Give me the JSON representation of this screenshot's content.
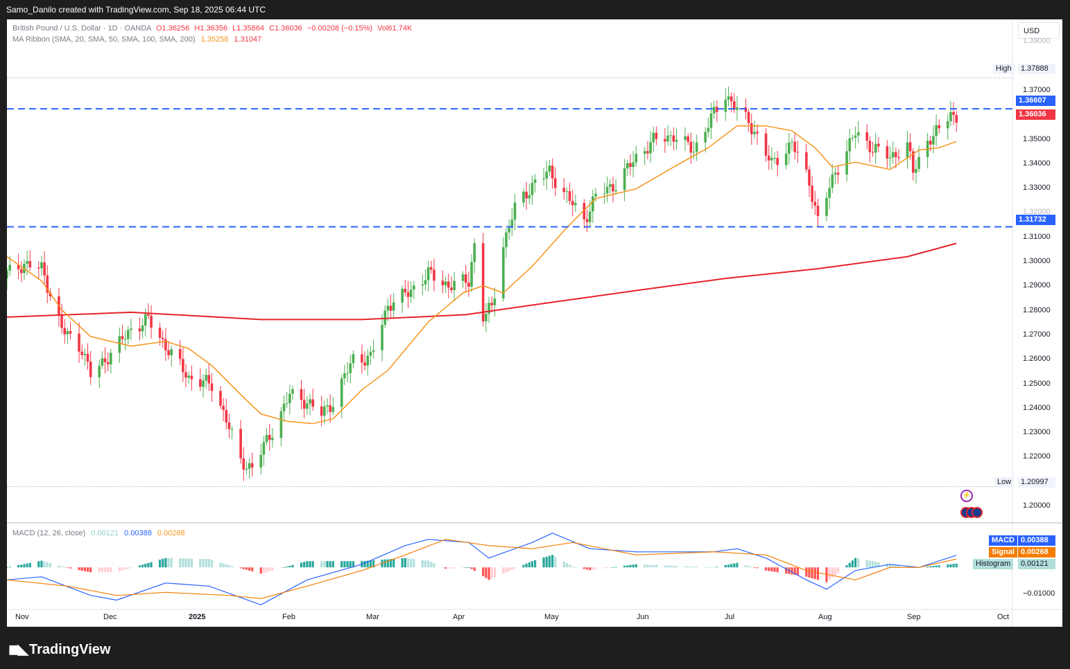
{
  "header": {
    "credit": "Samo_Danilo created with TradingView.com, Sep 18, 2025 06:44 UTC"
  },
  "legend": {
    "symbol": "British Pound / U.S. Dollar · 1D · OANDA",
    "o": "O1.36256",
    "h": "H1.36356",
    "l": "L1.35864",
    "c": "C1.36036",
    "chg": "−0.00208 (−0.15%)",
    "vol": "Vol61.74K",
    "ma_title": "MA Ribbon (SMA, 20, SMA, 50, SMA, 100, SMA, 200)",
    "ma_v1": "1.35258",
    "ma_v2": "1.31047",
    "macd_title": "MACD (12, 26, close)",
    "macd_h": "0.00121",
    "macd_m": "0.00388",
    "macd_s": "0.00268"
  },
  "currency_button": "USD",
  "price_ticks": [
    "1.39000",
    "1.37000",
    "1.35000",
    "1.34000",
    "1.33000",
    "1.32000",
    "1.31000",
    "1.30000",
    "1.29000",
    "1.28000",
    "1.27000",
    "1.26000",
    "1.25000",
    "1.24000",
    "1.23000",
    "1.22000",
    "1.20000"
  ],
  "macd_ticks": [
    "−0.01000"
  ],
  "tags": {
    "high_label": "High",
    "high_value": "1.37888",
    "res_value": "1.36607",
    "last_value": "1.36036",
    "sup_value": "1.31732",
    "low_label": "Low",
    "low_value": "1.20997",
    "macd_label": "MACD",
    "macd_value": "0.00388",
    "signal_label": "Signal",
    "signal_value": "0.00268",
    "hist_label": "Histogram",
    "hist_value": "0.00121"
  },
  "x_labels": [
    "Nov",
    "Dec",
    "2025",
    "Feb",
    "Mar",
    "Apr",
    "May",
    "Jun",
    "Jul",
    "Aug",
    "Sep",
    "Oct"
  ],
  "colors": {
    "up": "#26a69a",
    "green": "#4caf50",
    "down": "#f23645",
    "sma20": "#f7931a",
    "sma200": "#e5232a",
    "level": "#2962ff",
    "macd": "#2962ff",
    "signal": "#f57c00"
  },
  "brand": "TradingView",
  "chart_data": {
    "type": "candlestick",
    "title": "British Pound / U.S. Dollar · 1D · OANDA",
    "ylim": [
      1.195,
      1.395
    ],
    "x_start": "2024-10-24",
    "x_end": "2025-10-05",
    "levels": {
      "resistance": 1.36607,
      "support": 1.31732,
      "high": 1.37888,
      "low": 1.20997
    },
    "close_path": [
      [
        "2024-10-24",
        1.298
      ],
      [
        "2024-10-30",
        1.302
      ],
      [
        "2024-11-05",
        1.3
      ],
      [
        "2024-11-08",
        1.29
      ],
      [
        "2024-11-12",
        1.275
      ],
      [
        "2024-11-19",
        1.267
      ],
      [
        "2024-11-22",
        1.256
      ],
      [
        "2024-11-29",
        1.265
      ],
      [
        "2024-12-06",
        1.275
      ],
      [
        "2024-12-12",
        1.279
      ],
      [
        "2024-12-18",
        1.268
      ],
      [
        "2024-12-26",
        1.255
      ],
      [
        "2025-01-03",
        1.252
      ],
      [
        "2025-01-08",
        1.238
      ],
      [
        "2025-01-13",
        1.22
      ],
      [
        "2025-01-17",
        1.218
      ],
      [
        "2025-01-24",
        1.233
      ],
      [
        "2025-01-30",
        1.248
      ],
      [
        "2025-02-05",
        1.245
      ],
      [
        "2025-02-10",
        1.24
      ],
      [
        "2025-02-14",
        1.245
      ],
      [
        "2025-02-21",
        1.263
      ],
      [
        "2025-02-27",
        1.263
      ],
      [
        "2025-03-05",
        1.285
      ],
      [
        "2025-03-12",
        1.29
      ],
      [
        "2025-03-19",
        1.298
      ],
      [
        "2025-03-26",
        1.293
      ],
      [
        "2025-04-02",
        1.295
      ],
      [
        "2025-04-04",
        1.31
      ],
      [
        "2025-04-07",
        1.28
      ],
      [
        "2025-04-10",
        1.284
      ],
      [
        "2025-04-14",
        1.31
      ],
      [
        "2025-04-18",
        1.325
      ],
      [
        "2025-04-25",
        1.336
      ],
      [
        "2025-04-30",
        1.34
      ],
      [
        "2025-05-06",
        1.33
      ],
      [
        "2025-05-12",
        1.32
      ],
      [
        "2025-05-16",
        1.33
      ],
      [
        "2025-05-23",
        1.335
      ],
      [
        "2025-05-30",
        1.346
      ],
      [
        "2025-06-05",
        1.353
      ],
      [
        "2025-06-12",
        1.355
      ],
      [
        "2025-06-19",
        1.349
      ],
      [
        "2025-06-24",
        1.36
      ],
      [
        "2025-06-30",
        1.372
      ],
      [
        "2025-07-04",
        1.366
      ],
      [
        "2025-07-10",
        1.357
      ],
      [
        "2025-07-16",
        1.343
      ],
      [
        "2025-07-23",
        1.352
      ],
      [
        "2025-07-29",
        1.336
      ],
      [
        "2025-08-01",
        1.32
      ],
      [
        "2025-08-07",
        1.34
      ],
      [
        "2025-08-14",
        1.356
      ],
      [
        "2025-08-20",
        1.35
      ],
      [
        "2025-08-26",
        1.346
      ],
      [
        "2025-09-01",
        1.351
      ],
      [
        "2025-09-03",
        1.34
      ],
      [
        "2025-09-08",
        1.353
      ],
      [
        "2025-09-12",
        1.357
      ],
      [
        "2025-09-16",
        1.365
      ],
      [
        "2025-09-18",
        1.36036
      ]
    ],
    "sma20": [
      [
        "2024-10-24",
        1.305
      ],
      [
        "2024-11-05",
        1.295
      ],
      [
        "2024-11-12",
        1.283
      ],
      [
        "2024-11-22",
        1.272
      ],
      [
        "2024-12-06",
        1.268
      ],
      [
        "2024-12-18",
        1.27
      ],
      [
        "2024-12-26",
        1.267
      ],
      [
        "2025-01-03",
        1.26
      ],
      [
        "2025-01-13",
        1.248
      ],
      [
        "2025-01-20",
        1.24
      ],
      [
        "2025-01-29",
        1.237
      ],
      [
        "2025-02-07",
        1.236
      ],
      [
        "2025-02-14",
        1.238
      ],
      [
        "2025-02-24",
        1.25
      ],
      [
        "2025-03-05",
        1.258
      ],
      [
        "2025-03-19",
        1.278
      ],
      [
        "2025-03-31",
        1.29
      ],
      [
        "2025-04-07",
        1.293
      ],
      [
        "2025-04-14",
        1.29
      ],
      [
        "2025-04-24",
        1.301
      ],
      [
        "2025-05-06",
        1.317
      ],
      [
        "2025-05-16",
        1.329
      ],
      [
        "2025-05-30",
        1.333
      ],
      [
        "2025-06-12",
        1.342
      ],
      [
        "2025-06-24",
        1.35
      ],
      [
        "2025-07-04",
        1.359
      ],
      [
        "2025-07-14",
        1.359
      ],
      [
        "2025-07-23",
        1.357
      ],
      [
        "2025-07-31",
        1.35
      ],
      [
        "2025-08-06",
        1.342
      ],
      [
        "2025-08-14",
        1.344
      ],
      [
        "2025-08-26",
        1.341
      ],
      [
        "2025-09-05",
        1.349
      ],
      [
        "2025-09-12",
        1.35
      ],
      [
        "2025-09-18",
        1.35258
      ]
    ],
    "sma200": [
      [
        "2024-10-24",
        1.28
      ],
      [
        "2024-12-06",
        1.282
      ],
      [
        "2025-01-20",
        1.279
      ],
      [
        "2025-02-24",
        1.279
      ],
      [
        "2025-04-01",
        1.281
      ],
      [
        "2025-04-24",
        1.285
      ],
      [
        "2025-05-30",
        1.291
      ],
      [
        "2025-06-30",
        1.296
      ],
      [
        "2025-08-01",
        1.3
      ],
      [
        "2025-09-01",
        1.305
      ],
      [
        "2025-09-18",
        1.31047
      ]
    ],
    "macd": {
      "ylim": [
        -0.0135,
        0.0125
      ],
      "macd": [
        [
          "2024-10-24",
          -0.004
        ],
        [
          "2024-11-05",
          -0.003
        ],
        [
          "2024-11-22",
          -0.009
        ],
        [
          "2024-12-01",
          -0.0105
        ],
        [
          "2024-12-18",
          -0.005
        ],
        [
          "2025-01-02",
          -0.006
        ],
        [
          "2025-01-20",
          -0.012
        ],
        [
          "2025-02-05",
          -0.004
        ],
        [
          "2025-02-24",
          0.001
        ],
        [
          "2025-03-11",
          0.007
        ],
        [
          "2025-03-19",
          0.009
        ],
        [
          "2025-04-02",
          0.008
        ],
        [
          "2025-04-09",
          0.003
        ],
        [
          "2025-04-24",
          0.008
        ],
        [
          "2025-05-01",
          0.011
        ],
        [
          "2025-05-14",
          0.006
        ],
        [
          "2025-05-30",
          0.005
        ],
        [
          "2025-06-26",
          0.005
        ],
        [
          "2025-07-04",
          0.006
        ],
        [
          "2025-07-14",
          0.003
        ],
        [
          "2025-07-28",
          -0.004
        ],
        [
          "2025-08-04",
          -0.007
        ],
        [
          "2025-08-14",
          -0.001
        ],
        [
          "2025-08-26",
          0.001
        ],
        [
          "2025-09-05",
          0.0
        ],
        [
          "2025-09-18",
          0.00388
        ]
      ],
      "signal": [
        [
          "2024-10-24",
          -0.004
        ],
        [
          "2024-11-14",
          -0.006
        ],
        [
          "2024-12-01",
          -0.009
        ],
        [
          "2024-12-18",
          -0.008
        ],
        [
          "2025-01-09",
          -0.009
        ],
        [
          "2025-01-20",
          -0.01
        ],
        [
          "2025-02-05",
          -0.006
        ],
        [
          "2025-02-24",
          -0.001
        ],
        [
          "2025-03-11",
          0.004
        ],
        [
          "2025-03-25",
          0.009
        ],
        [
          "2025-04-09",
          0.007
        ],
        [
          "2025-04-24",
          0.006
        ],
        [
          "2025-05-08",
          0.008
        ],
        [
          "2025-05-30",
          0.004
        ],
        [
          "2025-06-26",
          0.005
        ],
        [
          "2025-07-14",
          0.004
        ],
        [
          "2025-07-28",
          -0.001
        ],
        [
          "2025-08-14",
          -0.004
        ],
        [
          "2025-08-26",
          0.0
        ],
        [
          "2025-09-05",
          0.0
        ],
        [
          "2025-09-18",
          0.00268
        ]
      ],
      "histogram_last": 0.00121
    }
  }
}
